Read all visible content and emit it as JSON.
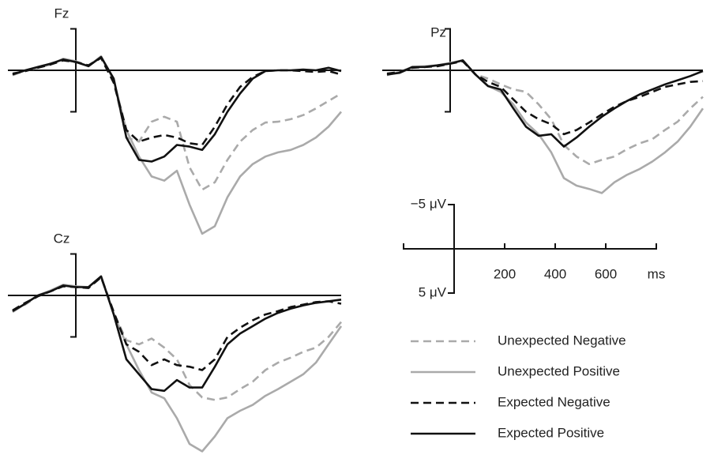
{
  "chart_data": [
    {
      "type": "line",
      "title": "Fz",
      "x": [
        -250,
        -200,
        -150,
        -100,
        -50,
        0,
        50,
        100,
        150,
        200,
        250,
        300,
        350,
        400,
        450,
        500,
        550,
        600,
        650,
        700,
        750,
        800,
        850,
        900,
        950,
        1000,
        1050
      ],
      "series": [
        {
          "name": "Unexpected Negative",
          "color": "#aaaaaa",
          "dashed": true,
          "values": [
            0.5,
            0.1,
            -0.4,
            -0.8,
            -1.2,
            -1.0,
            -0.6,
            -1.6,
            1.3,
            8.1,
            8.6,
            6.2,
            5.6,
            6.2,
            11.7,
            14.4,
            13.5,
            10.8,
            8.6,
            7.2,
            6.3,
            6.2,
            5.9,
            5.4,
            4.6,
            3.7,
            2.8
          ]
        },
        {
          "name": "Unexpected Positive",
          "color": "#aaaaaa",
          "dashed": false,
          "values": [
            0.6,
            0,
            -0.3,
            -0.7,
            -1.4,
            -1.1,
            -0.5,
            -1.7,
            1.2,
            7.2,
            10.4,
            12.8,
            13.3,
            12.1,
            16.2,
            19.7,
            18.8,
            15.3,
            12.8,
            11.3,
            10.4,
            9.9,
            9.6,
            9.0,
            8.1,
            6.8,
            5.0
          ]
        },
        {
          "name": "Expected Negative",
          "color": "#111111",
          "dashed": true,
          "values": [
            0.4,
            0.1,
            -0.3,
            -0.7,
            -1.2,
            -1.0,
            -0.6,
            -1.5,
            1.5,
            7.2,
            8.6,
            8.1,
            7.8,
            8.1,
            8.8,
            9.0,
            6.8,
            4.1,
            2.0,
            0.8,
            0.1,
            0,
            0,
            0.1,
            0.2,
            0.1,
            0.5
          ]
        },
        {
          "name": "Expected Positive",
          "color": "#111111",
          "dashed": false,
          "values": [
            0.5,
            0,
            -0.4,
            -0.8,
            -1.3,
            -1.0,
            -0.5,
            -1.6,
            1.0,
            8.1,
            10.8,
            11.0,
            10.4,
            9.0,
            9.2,
            9.6,
            7.7,
            5.0,
            2.8,
            1.0,
            0.1,
            0,
            0,
            -0.1,
            0,
            -0.3,
            0.1
          ]
        }
      ]
    },
    {
      "type": "line",
      "title": "Cz",
      "x": [
        -250,
        -200,
        -150,
        -100,
        -50,
        0,
        50,
        100,
        150,
        200,
        250,
        300,
        350,
        400,
        450,
        500,
        550,
        600,
        650,
        700,
        750,
        800,
        850,
        900,
        950,
        1000,
        1050
      ],
      "series": [
        {
          "name": "Unexpected Negative",
          "color": "#aaaaaa",
          "dashed": true,
          "values": [
            1.9,
            1.1,
            0.1,
            -0.5,
            -1.2,
            -1.0,
            -0.9,
            -2.2,
            2.1,
            5.4,
            5.9,
            5.2,
            6.3,
            7.7,
            10.8,
            12.3,
            12.6,
            12.3,
            11.3,
            10.4,
            9.0,
            8.1,
            7.5,
            6.8,
            6.3,
            5.0,
            3.2
          ]
        },
        {
          "name": "Unexpected Positive",
          "color": "#aaaaaa",
          "dashed": false,
          "values": [
            2.0,
            1.0,
            0,
            -0.6,
            -1.3,
            -1.1,
            -1.0,
            -2.3,
            2.2,
            5.9,
            9.0,
            11.7,
            12.4,
            14.8,
            17.9,
            18.8,
            17.0,
            14.8,
            13.9,
            13.2,
            12.1,
            11.3,
            10.4,
            9.5,
            8.1,
            5.9,
            3.7
          ]
        },
        {
          "name": "Expected Negative",
          "color": "#111111",
          "dashed": true,
          "values": [
            1.8,
            0.9,
            0.1,
            -0.5,
            -1.1,
            -1.0,
            -0.9,
            -2.2,
            2.0,
            5.9,
            6.8,
            8.4,
            7.7,
            8.4,
            8.6,
            9.0,
            7.7,
            5.0,
            3.9,
            3.0,
            2.3,
            1.9,
            1.4,
            1.1,
            0.8,
            0.7,
            1.0
          ]
        },
        {
          "name": "Expected Positive",
          "color": "#111111",
          "dashed": false,
          "values": [
            1.9,
            1.0,
            0,
            -0.5,
            -1.2,
            -1.0,
            -1.0,
            -2.3,
            2.3,
            7.7,
            9.5,
            11.3,
            11.5,
            10.2,
            11.1,
            11.1,
            8.6,
            5.9,
            4.6,
            3.7,
            2.8,
            2.1,
            1.6,
            1.2,
            0.9,
            0.7,
            0.5
          ]
        }
      ]
    },
    {
      "type": "line",
      "title": "Pz",
      "x": [
        -250,
        -200,
        -150,
        -100,
        -50,
        0,
        50,
        100,
        150,
        200,
        250,
        300,
        350,
        400,
        450,
        500,
        550,
        600,
        650,
        700,
        750,
        800,
        850,
        900,
        950,
        1000
      ],
      "series": [
        {
          "name": "Unexpected Negative",
          "color": "#aaaaaa",
          "dashed": true,
          "values": [
            0.5,
            0.3,
            -0.3,
            -0.4,
            -0.5,
            -0.8,
            -1.1,
            0.5,
            1.0,
            1.7,
            2.3,
            2.6,
            4.1,
            5.9,
            9.0,
            10.4,
            11.3,
            10.8,
            10.4,
            9.5,
            8.8,
            8.3,
            7.2,
            6.2,
            4.6,
            3.2
          ]
        },
        {
          "name": "Unexpected Positive",
          "color": "#aaaaaa",
          "dashed": false,
          "values": [
            0.6,
            0.2,
            -0.4,
            -0.5,
            -0.6,
            -0.9,
            -1.2,
            0.5,
            1.9,
            2.6,
            4.1,
            6.3,
            7.7,
            9.9,
            13.0,
            13.9,
            14.3,
            14.8,
            13.5,
            12.6,
            11.9,
            11.0,
            9.9,
            8.6,
            6.8,
            4.6
          ]
        },
        {
          "name": "Expected Negative",
          "color": "#111111",
          "dashed": true,
          "values": [
            0.4,
            0.2,
            -0.3,
            -0.4,
            -0.5,
            -0.8,
            -1.1,
            0.5,
            1.4,
            2.0,
            3.5,
            5.0,
            5.9,
            6.5,
            7.7,
            7.2,
            6.3,
            5.3,
            4.4,
            3.7,
            3.2,
            2.6,
            2.0,
            1.7,
            1.4,
            1.3
          ]
        },
        {
          "name": "Expected Positive",
          "color": "#111111",
          "dashed": false,
          "values": [
            0.5,
            0.3,
            -0.4,
            -0.4,
            -0.6,
            -0.8,
            -1.2,
            0.5,
            1.9,
            2.3,
            4.6,
            6.8,
            7.9,
            7.7,
            9.2,
            8.1,
            6.8,
            5.6,
            4.6,
            3.7,
            2.9,
            2.3,
            1.7,
            1.2,
            0.7,
            0.1
          ]
        }
      ]
    },
    {
      "type": "scale",
      "xlim": [
        -200,
        800
      ],
      "xticks": [
        0,
        200,
        400,
        600,
        {
          "value": 800,
          "label": "ms"
        }
      ],
      "ylim": [
        -5,
        5
      ],
      "yticks": [
        {
          "value": -5,
          "label": "−5 μV"
        },
        {
          "value": 5,
          "label": "5 μV"
        }
      ]
    }
  ]
}
